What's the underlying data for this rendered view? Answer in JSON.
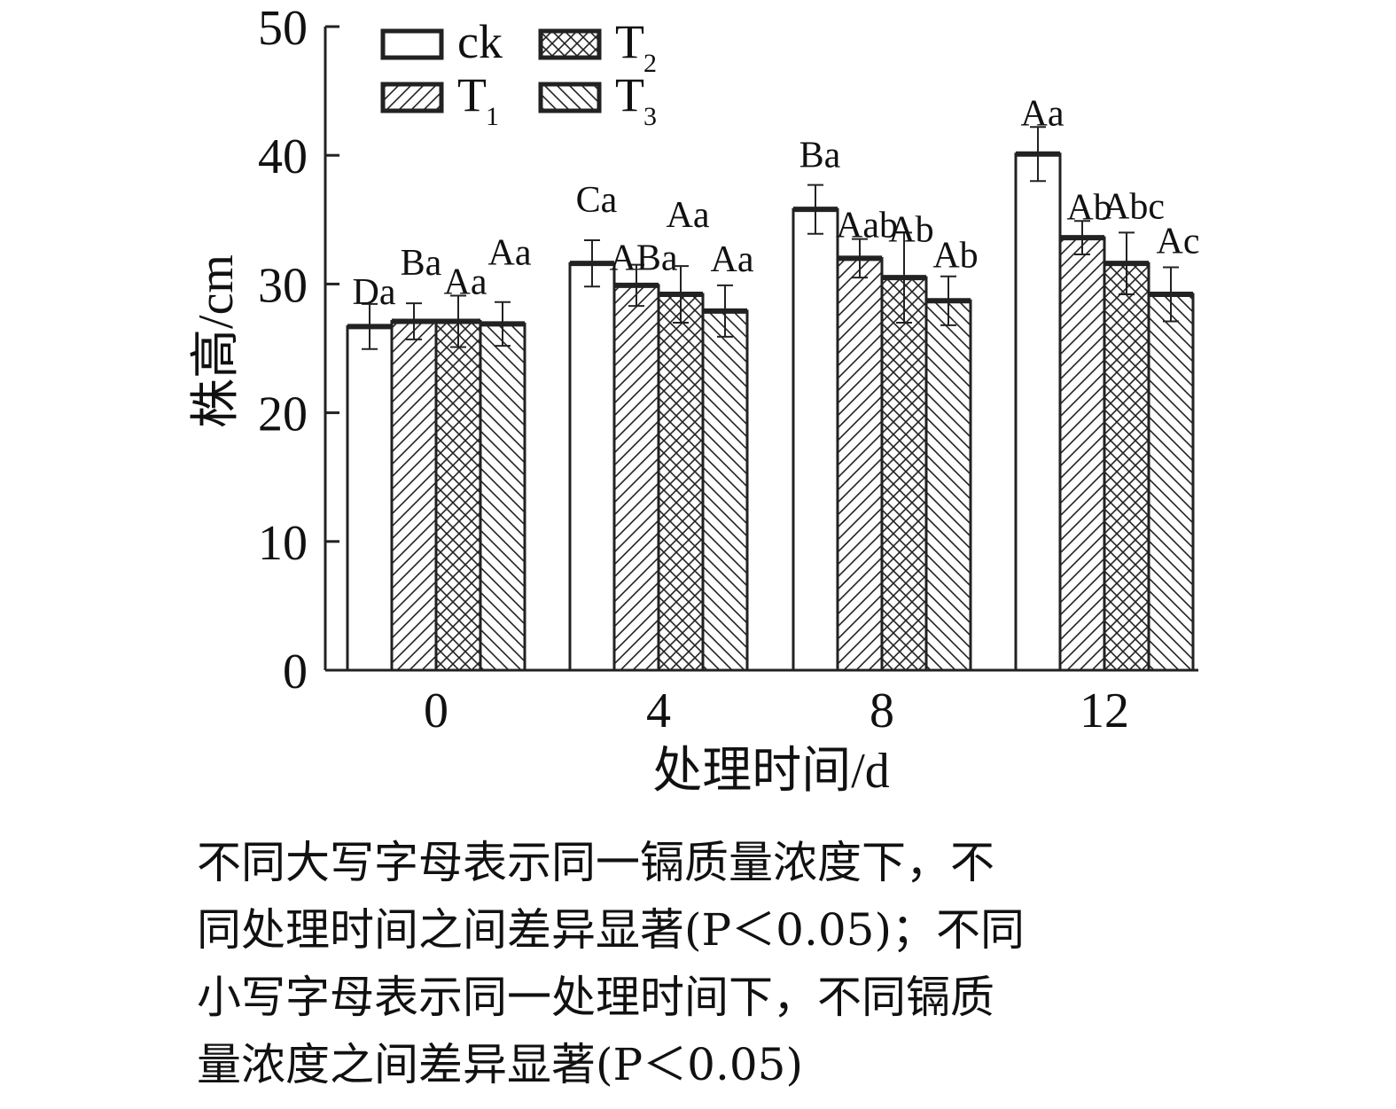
{
  "chart_data": {
    "type": "bar",
    "xlabel": "处理时间/d",
    "ylabel": "株高/cm",
    "categories": [
      "0",
      "4",
      "8",
      "12"
    ],
    "ylim": [
      0,
      50
    ],
    "yticks": [
      0,
      10,
      20,
      30,
      40,
      50
    ],
    "grid": false,
    "legend_position": "top-left",
    "series": [
      {
        "name": "ck",
        "pattern": "none",
        "values": [
          26.7,
          31.6,
          35.8,
          40.1
        ],
        "errors": [
          1.75,
          1.8,
          1.9,
          2.1
        ],
        "labels": [
          "Da",
          "Ca",
          "Ba",
          "Aa"
        ]
      },
      {
        "name": "T1",
        "pattern": "forward-diagonal",
        "values": [
          27.1,
          29.9,
          32.0,
          33.6
        ],
        "errors": [
          1.4,
          1.6,
          1.5,
          1.3
        ],
        "labels": [
          "Ba",
          "ABa",
          "Aab",
          "Ab"
        ]
      },
      {
        "name": "T2",
        "pattern": "crosshatch",
        "values": [
          27.1,
          29.2,
          30.5,
          31.6
        ],
        "errors": [
          2.0,
          2.2,
          3.5,
          2.4
        ],
        "labels": [
          "Aa",
          "Aa",
          "Ab",
          "Abc"
        ]
      },
      {
        "name": "T3",
        "pattern": "back-diagonal",
        "values": [
          26.9,
          27.9,
          28.7,
          29.2
        ],
        "errors": [
          1.7,
          2.0,
          1.9,
          2.1
        ],
        "labels": [
          "Aa",
          "Aa",
          "Ab",
          "Ac"
        ]
      }
    ],
    "legend": [
      {
        "main": "ck",
        "sub": ""
      },
      {
        "main": "T",
        "sub": "1"
      },
      {
        "main": "T",
        "sub": "2"
      },
      {
        "main": "T",
        "sub": "3"
      }
    ]
  },
  "caption": {
    "lines": [
      "不同大写字母表示同一镉质量浓度下，不",
      "同处理时间之间差异显著(P＜0.05)；不同",
      "小写字母表示同一处理时间下，不同镉质",
      "量浓度之间差异显著(P＜0.05)"
    ]
  }
}
